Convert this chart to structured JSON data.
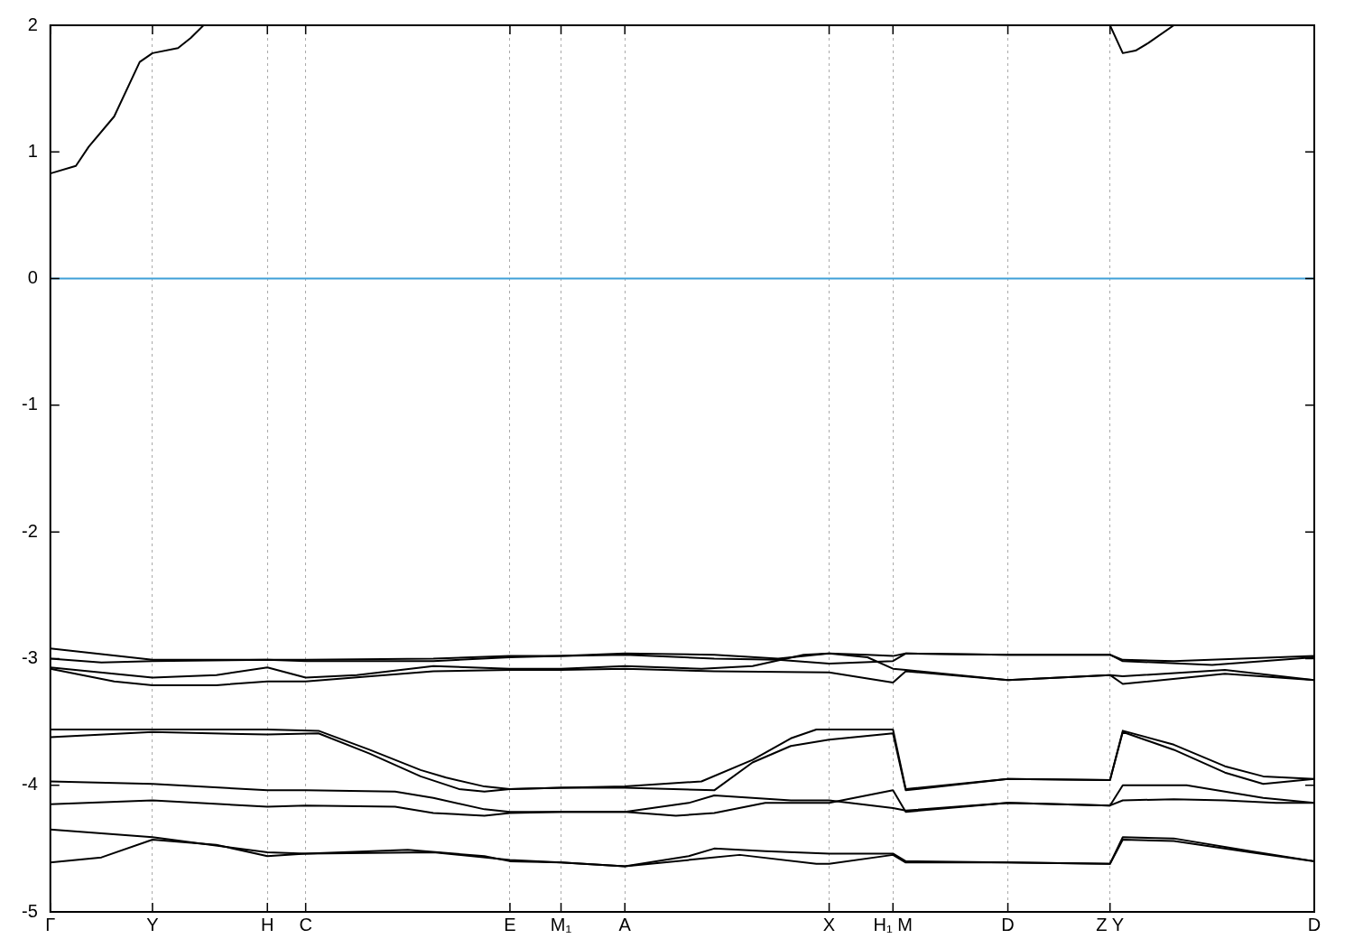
{
  "chart_data": {
    "type": "line",
    "marker": "none",
    "line_style": "solid",
    "grid": "x",
    "categories": [
      "Γ",
      null,
      null,
      null,
      null,
      null,
      null,
      null,
      "Y",
      null,
      null,
      null,
      null,
      null,
      null,
      null,
      null,
      "H",
      null,
      null,
      "C",
      null,
      null,
      null,
      null,
      null,
      null,
      null,
      null,
      null,
      null,
      null,
      null,
      null,
      null,
      null,
      "E",
      null,
      null,
      null,
      "M₁",
      null,
      null,
      null,
      null,
      "A",
      null,
      null,
      null,
      null,
      null,
      null,
      null,
      null,
      null,
      null,
      null,
      null,
      null,
      null,
      null,
      "X",
      null,
      null,
      null,
      null,
      "H₁ M",
      null,
      null,
      null,
      null,
      null,
      null,
      null,
      null,
      "D",
      null,
      null,
      null,
      null,
      null,
      null,
      null,
      "Z Y",
      null,
      null,
      null,
      null,
      null,
      null,
      null,
      null,
      null,
      null,
      null,
      null,
      null,
      null,
      null,
      "D"
    ],
    "ylim": [
      -5,
      2
    ],
    "yticks": [
      -5,
      -4,
      -3,
      -2,
      -1,
      0,
      1,
      2
    ],
    "ref_lines": [
      {
        "axis": "y",
        "value": 0,
        "color": "#3fa0d8"
      }
    ],
    "series": [
      {
        "color": "#000000",
        "values": [
          0.83,
          null,
          0.89,
          1.04,
          null,
          1.28,
          null,
          1.71,
          1.78,
          null,
          1.82,
          1.9,
          2.0,
          null,
          null,
          null,
          null,
          null,
          null,
          null,
          null,
          null,
          null,
          null,
          null,
          null,
          null,
          null,
          null,
          null,
          null,
          null,
          null,
          null,
          null,
          null,
          null,
          null,
          null,
          null,
          null,
          null,
          null,
          null,
          null,
          null,
          null,
          null,
          null,
          null,
          null,
          null,
          null,
          null,
          null,
          null,
          null,
          null,
          null,
          null,
          null,
          null,
          null,
          null,
          null,
          null,
          null,
          null,
          null,
          null,
          null,
          null,
          null,
          null,
          null,
          null,
          null,
          null,
          null,
          null,
          null,
          null,
          null,
          null,
          null,
          null,
          null,
          null,
          null,
          null,
          null,
          null,
          null,
          null,
          null,
          null,
          null,
          null,
          null,
          null
        ]
      },
      {
        "color": "#000000",
        "values": [
          null,
          null,
          null,
          null,
          null,
          null,
          null,
          null,
          null,
          null,
          null,
          null,
          null,
          null,
          null,
          null,
          null,
          null,
          null,
          null,
          null,
          null,
          null,
          null,
          null,
          null,
          null,
          null,
          null,
          null,
          null,
          null,
          null,
          null,
          null,
          null,
          null,
          null,
          null,
          null,
          null,
          null,
          null,
          null,
          null,
          null,
          null,
          null,
          null,
          null,
          null,
          null,
          null,
          null,
          null,
          null,
          null,
          null,
          null,
          null,
          null,
          null,
          null,
          null,
          null,
          null,
          null,
          null,
          null,
          null,
          null,
          null,
          null,
          null,
          null,
          null,
          null,
          null,
          null,
          null,
          null,
          null,
          null,
          2.0,
          1.78,
          1.8,
          1.86,
          null,
          2.0,
          null,
          null,
          null,
          null,
          null,
          null,
          null,
          null,
          null,
          null,
          null
        ]
      },
      {
        "color": "#000000",
        "values": [
          -2.92,
          null,
          null,
          null,
          null,
          null,
          null,
          null,
          -3.01,
          null,
          null,
          null,
          null,
          null,
          null,
          null,
          null,
          -3.01,
          null,
          null,
          -3.01,
          null,
          null,
          null,
          null,
          null,
          null,
          null,
          null,
          null,
          -3.0,
          null,
          null,
          null,
          null,
          null,
          -2.98,
          null,
          null,
          null,
          -2.98,
          null,
          null,
          null,
          null,
          -2.96,
          null,
          null,
          null,
          null,
          null,
          null,
          -2.97,
          null,
          null,
          null,
          null,
          -3.0,
          null,
          null,
          null,
          -2.96,
          null,
          null,
          -2.97,
          null,
          -2.98,
          -2.96,
          null,
          null,
          null,
          null,
          null,
          null,
          null,
          -2.97,
          null,
          null,
          null,
          null,
          null,
          null,
          null,
          -2.97,
          -3.01,
          null,
          null,
          null,
          -3.02,
          null,
          null,
          null,
          null,
          null,
          null,
          null,
          null,
          null,
          null,
          -2.98
        ]
      },
      {
        "color": "#000000",
        "values": [
          -3.0,
          null,
          null,
          null,
          -3.03,
          null,
          null,
          null,
          -3.02,
          null,
          null,
          null,
          null,
          null,
          null,
          null,
          null,
          -3.01,
          null,
          null,
          -3.02,
          null,
          null,
          null,
          null,
          null,
          null,
          null,
          null,
          null,
          -3.02,
          null,
          null,
          null,
          null,
          null,
          -2.99,
          null,
          null,
          null,
          -2.98,
          null,
          null,
          null,
          null,
          -2.97,
          null,
          null,
          null,
          null,
          null,
          null,
          -3.0,
          null,
          null,
          null,
          null,
          -3.01,
          null,
          null,
          null,
          -3.04,
          null,
          null,
          null,
          null,
          -3.02,
          -2.96,
          null,
          null,
          null,
          null,
          null,
          null,
          null,
          -2.97,
          null,
          null,
          null,
          null,
          null,
          null,
          null,
          -2.97,
          -3.02,
          null,
          null,
          null,
          null,
          null,
          null,
          -3.05,
          null,
          null,
          null,
          null,
          null,
          null,
          null,
          -2.99
        ]
      },
      {
        "color": "#000000",
        "values": [
          -3.07,
          null,
          null,
          null,
          null,
          null,
          null,
          null,
          -3.15,
          null,
          null,
          null,
          null,
          -3.13,
          null,
          null,
          null,
          -3.07,
          null,
          null,
          -3.15,
          null,
          null,
          null,
          -3.13,
          null,
          null,
          null,
          null,
          null,
          -3.06,
          null,
          null,
          null,
          null,
          null,
          -3.08,
          null,
          null,
          null,
          -3.08,
          null,
          null,
          null,
          null,
          -3.06,
          null,
          null,
          null,
          null,
          null,
          -3.08,
          null,
          null,
          null,
          -3.06,
          null,
          null,
          null,
          -2.97,
          null,
          -2.96,
          null,
          null,
          -2.99,
          null,
          -3.08,
          -3.09,
          null,
          null,
          null,
          null,
          null,
          null,
          null,
          -3.17,
          null,
          null,
          null,
          null,
          null,
          null,
          null,
          -3.13,
          -3.14,
          null,
          null,
          null,
          null,
          null,
          null,
          null,
          -3.09,
          null,
          null,
          null,
          null,
          null,
          null,
          -3.17
        ]
      },
      {
        "color": "#000000",
        "values": [
          -3.08,
          null,
          null,
          null,
          null,
          -3.18,
          null,
          null,
          -3.21,
          null,
          null,
          null,
          null,
          -3.21,
          null,
          null,
          null,
          -3.18,
          null,
          null,
          -3.18,
          null,
          null,
          null,
          null,
          null,
          null,
          null,
          null,
          null,
          -3.1,
          null,
          null,
          null,
          null,
          null,
          -3.09,
          null,
          null,
          null,
          -3.09,
          null,
          null,
          null,
          null,
          -3.08,
          null,
          null,
          null,
          null,
          null,
          null,
          -3.1,
          null,
          null,
          null,
          null,
          null,
          null,
          null,
          null,
          -3.11,
          null,
          null,
          null,
          null,
          -3.19,
          -3.1,
          null,
          null,
          null,
          null,
          null,
          null,
          null,
          -3.17,
          null,
          null,
          null,
          null,
          null,
          null,
          null,
          -3.13,
          -3.2,
          null,
          null,
          null,
          null,
          null,
          null,
          null,
          -3.12,
          null,
          null,
          null,
          null,
          null,
          null,
          -3.17
        ]
      },
      {
        "color": "#000000",
        "values": [
          -3.56,
          null,
          null,
          null,
          null,
          null,
          null,
          null,
          -3.56,
          null,
          null,
          null,
          null,
          null,
          null,
          null,
          null,
          -3.56,
          null,
          null,
          null,
          -3.57,
          null,
          null,
          null,
          -3.72,
          null,
          null,
          null,
          -3.88,
          null,
          -3.94,
          null,
          null,
          -4.01,
          null,
          -4.03,
          null,
          null,
          null,
          -4.02,
          null,
          null,
          null,
          null,
          -4.01,
          null,
          null,
          null,
          null,
          null,
          -3.97,
          null,
          null,
          null,
          -3.8,
          null,
          null,
          -3.63,
          null,
          -3.56,
          null,
          null,
          null,
          null,
          null,
          -3.56,
          -4.03,
          null,
          null,
          null,
          null,
          null,
          null,
          null,
          -3.95,
          null,
          null,
          null,
          null,
          null,
          null,
          null,
          -3.96,
          -3.57,
          null,
          null,
          null,
          -3.68,
          null,
          null,
          null,
          -3.85,
          null,
          null,
          -3.93,
          null,
          null,
          null,
          -3.95
        ]
      },
      {
        "color": "#000000",
        "values": [
          -3.62,
          null,
          null,
          null,
          null,
          null,
          null,
          null,
          -3.58,
          null,
          null,
          null,
          null,
          null,
          null,
          null,
          null,
          -3.6,
          null,
          null,
          null,
          -3.59,
          null,
          null,
          null,
          -3.75,
          null,
          null,
          null,
          -3.93,
          null,
          null,
          -4.03,
          null,
          -4.05,
          null,
          -4.03,
          null,
          null,
          null,
          -4.02,
          null,
          null,
          null,
          null,
          -4.02,
          null,
          null,
          null,
          null,
          null,
          null,
          -4.04,
          null,
          null,
          -3.82,
          null,
          null,
          -3.69,
          null,
          null,
          -3.64,
          null,
          null,
          null,
          null,
          -3.59,
          -4.04,
          null,
          null,
          null,
          null,
          null,
          null,
          null,
          -3.95,
          null,
          null,
          null,
          null,
          null,
          null,
          null,
          -3.96,
          -3.58,
          null,
          null,
          null,
          -3.72,
          null,
          null,
          null,
          -3.9,
          null,
          null,
          -3.99,
          null,
          null,
          null,
          -3.95
        ]
      },
      {
        "color": "#000000",
        "values": [
          -3.97,
          null,
          null,
          null,
          null,
          null,
          null,
          null,
          -3.99,
          null,
          null,
          null,
          null,
          null,
          null,
          null,
          null,
          -4.04,
          null,
          null,
          -4.04,
          null,
          null,
          null,
          null,
          null,
          null,
          -4.05,
          null,
          null,
          -4.1,
          null,
          null,
          null,
          -4.19,
          null,
          -4.21,
          null,
          null,
          null,
          -4.21,
          null,
          null,
          null,
          null,
          -4.21,
          null,
          null,
          null,
          null,
          -4.14,
          null,
          -4.08,
          null,
          null,
          null,
          null,
          null,
          -4.12,
          null,
          null,
          -4.12,
          null,
          null,
          null,
          null,
          -4.18,
          -4.2,
          null,
          null,
          null,
          null,
          null,
          null,
          null,
          -4.14,
          null,
          null,
          null,
          null,
          null,
          null,
          null,
          -4.16,
          -4.0,
          null,
          null,
          null,
          null,
          -4.0,
          null,
          null,
          null,
          null,
          null,
          -4.1,
          null,
          null,
          null,
          -4.14
        ]
      },
      {
        "color": "#000000",
        "values": [
          -4.15,
          null,
          null,
          null,
          null,
          null,
          null,
          null,
          -4.12,
          null,
          null,
          null,
          null,
          null,
          null,
          null,
          null,
          -4.17,
          null,
          null,
          -4.16,
          null,
          null,
          null,
          null,
          null,
          null,
          -4.17,
          null,
          null,
          -4.22,
          null,
          null,
          null,
          -4.24,
          null,
          -4.22,
          null,
          null,
          null,
          -4.21,
          null,
          null,
          null,
          null,
          -4.21,
          null,
          null,
          null,
          -4.24,
          null,
          null,
          -4.22,
          null,
          null,
          null,
          -4.14,
          null,
          null,
          null,
          null,
          -4.14,
          null,
          null,
          null,
          null,
          -4.04,
          -4.21,
          null,
          null,
          null,
          null,
          null,
          null,
          null,
          -4.14,
          null,
          null,
          null,
          null,
          null,
          null,
          null,
          -4.16,
          -4.12,
          null,
          null,
          null,
          -4.11,
          null,
          null,
          null,
          -4.12,
          null,
          null,
          null,
          -4.14,
          null,
          null,
          -4.14
        ]
      },
      {
        "color": "#000000",
        "values": [
          -4.35,
          null,
          null,
          null,
          null,
          null,
          null,
          null,
          -4.41,
          null,
          null,
          null,
          null,
          null,
          null,
          null,
          null,
          -4.53,
          null,
          null,
          -4.54,
          null,
          null,
          null,
          null,
          null,
          null,
          null,
          null,
          null,
          -4.53,
          null,
          null,
          null,
          null,
          null,
          -4.59,
          null,
          null,
          null,
          -4.61,
          null,
          null,
          null,
          null,
          -4.64,
          null,
          null,
          null,
          null,
          -4.56,
          null,
          -4.5,
          null,
          null,
          null,
          -4.52,
          null,
          null,
          null,
          null,
          -4.54,
          null,
          null,
          null,
          null,
          -4.54,
          -4.6,
          null,
          null,
          null,
          null,
          null,
          null,
          null,
          -4.61,
          null,
          null,
          null,
          null,
          null,
          null,
          null,
          -4.62,
          -4.41,
          null,
          null,
          null,
          -4.42,
          null,
          null,
          null,
          null,
          null,
          -4.52,
          null,
          null,
          null,
          null,
          -4.6
        ]
      },
      {
        "color": "#000000",
        "values": [
          -4.61,
          null,
          null,
          null,
          -4.57,
          null,
          null,
          null,
          -4.43,
          null,
          null,
          null,
          null,
          -4.47,
          null,
          null,
          null,
          -4.56,
          null,
          null,
          -4.54,
          null,
          null,
          null,
          null,
          null,
          null,
          null,
          -4.51,
          null,
          null,
          null,
          null,
          null,
          -4.56,
          null,
          -4.6,
          null,
          null,
          null,
          -4.61,
          null,
          null,
          null,
          null,
          -4.64,
          null,
          null,
          null,
          null,
          null,
          -4.58,
          null,
          null,
          -4.55,
          null,
          null,
          null,
          null,
          null,
          -4.62,
          -4.62,
          null,
          null,
          null,
          null,
          -4.55,
          -4.61,
          null,
          null,
          null,
          null,
          null,
          null,
          null,
          -4.61,
          null,
          null,
          null,
          null,
          null,
          null,
          null,
          -4.62,
          -4.43,
          null,
          null,
          null,
          -4.44,
          null,
          null,
          null,
          null,
          null,
          -4.53,
          null,
          null,
          null,
          null,
          -4.6
        ]
      }
    ]
  }
}
